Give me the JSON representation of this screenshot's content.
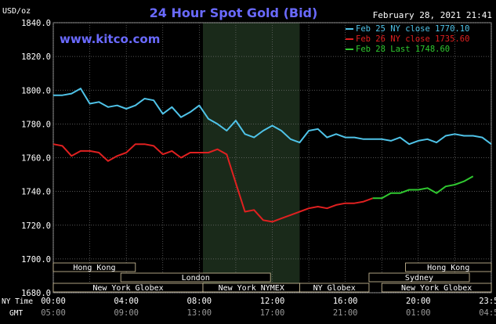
{
  "page": {
    "background": "#000000",
    "plot_background": "#000000",
    "night_band": "#1a2a1a"
  },
  "chart_data": {
    "type": "line",
    "title": "24 Hour Spot Gold (Bid)",
    "date_label": "February 28, 2021 21:41",
    "watermark": "www.kitco.com",
    "ylabel": "USD/oz",
    "ylim": [
      1680,
      1840
    ],
    "yticks": [
      1680,
      1700,
      1720,
      1740,
      1760,
      1780,
      1800,
      1820,
      1840
    ],
    "ytick_labels": [
      "1680.0",
      "1700.0",
      "1720.0",
      "1740.0",
      "1760.0",
      "1780.0",
      "1800.0",
      "1820.0",
      "1840.0"
    ],
    "xlim": [
      0,
      24
    ],
    "xticks": [
      0,
      4,
      8,
      12,
      16,
      20,
      24
    ],
    "xtick_labels_ny": [
      "00:00",
      "04:00",
      "08:00",
      "12:00",
      "16:00",
      "20:00",
      "23:59"
    ],
    "xtick_labels_gmt": [
      "05:00",
      "09:00",
      "13:00",
      "17:00",
      "21:00",
      "01:00",
      "04:59"
    ],
    "xaxis_row_labels": {
      "ny": "NY Time",
      "gmt": "GMT"
    },
    "shaded_range": [
      8.2,
      13.5
    ],
    "grid": true,
    "legend_position": "top-right",
    "series": [
      {
        "name": "Feb 25 NY close 1770.10",
        "color": "#4fc3e8",
        "x": [
          0,
          0.5,
          1,
          1.5,
          2,
          2.5,
          3,
          3.5,
          4,
          4.5,
          5,
          5.5,
          6,
          6.5,
          7,
          7.5,
          8,
          8.5,
          9,
          9.5,
          10,
          10.5,
          11,
          11.5,
          12,
          12.5,
          13,
          13.5,
          14,
          14.5,
          15,
          15.5,
          16,
          16.5,
          17,
          17.5,
          18,
          18.5,
          19,
          19.5,
          20,
          20.5,
          21,
          21.5,
          22,
          22.5,
          23,
          23.5,
          24
        ],
        "y": [
          1797,
          1797,
          1798,
          1801,
          1792,
          1793,
          1790,
          1791,
          1789,
          1791,
          1795,
          1794,
          1786,
          1790,
          1784,
          1787,
          1791,
          1783,
          1780,
          1776,
          1782,
          1774,
          1772,
          1776,
          1779,
          1776,
          1771,
          1769,
          1776,
          1777,
          1772,
          1774,
          1772,
          1772,
          1771,
          1771,
          1771,
          1770,
          1772,
          1768,
          1770,
          1771,
          1769,
          1773,
          1774,
          1773,
          1773,
          1772,
          1768
        ]
      },
      {
        "name": "Feb 26 NY close 1735.60",
        "color": "#e02020",
        "x": [
          0,
          0.5,
          1,
          1.5,
          2,
          2.5,
          3,
          3.5,
          4,
          4.5,
          5,
          5.5,
          6,
          6.5,
          7,
          7.5,
          8,
          8.5,
          9,
          9.5,
          10,
          10.5,
          11,
          11.5,
          12,
          12.5,
          13,
          13.5,
          14,
          14.5,
          15,
          15.5,
          16,
          16.5,
          17,
          17.5
        ],
        "y": [
          1768,
          1767,
          1761,
          1764,
          1764,
          1763,
          1758,
          1761,
          1763,
          1768,
          1768,
          1767,
          1762,
          1764,
          1760,
          1763,
          1763,
          1763,
          1765,
          1762,
          1745,
          1728,
          1729,
          1723,
          1722,
          1724,
          1726,
          1728,
          1730,
          1731,
          1730,
          1732,
          1733,
          1733,
          1734,
          1736
        ]
      },
      {
        "name": "Feb 28 Last 1748.60",
        "color": "#30c830",
        "x": [
          17.5,
          18,
          18.5,
          19,
          19.5,
          20,
          20.5,
          21,
          21.5,
          22,
          22.5,
          23
        ],
        "y": [
          1736,
          1736,
          1739,
          1739,
          1741,
          1741,
          1742,
          1739,
          1743,
          1744,
          1746,
          1749
        ]
      }
    ],
    "session_bars": [
      {
        "label": "Hong Kong",
        "start": 0,
        "end": 4.5,
        "row": 0
      },
      {
        "label": "London",
        "start": 3.7,
        "end": 11.9,
        "row": 1
      },
      {
        "label": "New York Globex",
        "start": 0,
        "end": 8.2,
        "row": 2
      },
      {
        "label": "New York NYMEX",
        "start": 8.2,
        "end": 13.5,
        "row": 2
      },
      {
        "label": "NY Globex",
        "start": 13.5,
        "end": 17.3,
        "row": 2
      },
      {
        "label": "Hong Kong",
        "start": 19.3,
        "end": 24,
        "row": 0
      },
      {
        "label": "Sydney",
        "start": 17.3,
        "end": 22.8,
        "row": 1
      },
      {
        "label": "New York Globex",
        "start": 18,
        "end": 24,
        "row": 2
      }
    ]
  }
}
